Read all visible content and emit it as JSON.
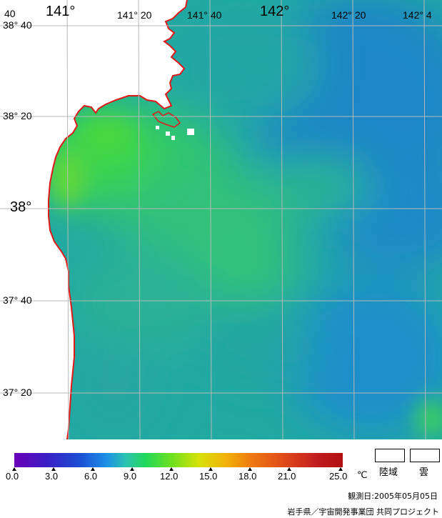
{
  "map": {
    "longitude_labels": [
      {
        "text": "40",
        "size": "small"
      },
      {
        "text": "141°",
        "size": "big"
      },
      {
        "text": "141° 20",
        "size": "small"
      },
      {
        "text": "141° 40",
        "size": "small"
      },
      {
        "text": "142°",
        "size": "big"
      },
      {
        "text": "142° 20",
        "size": "small"
      },
      {
        "text": "142° 4",
        "size": "small"
      }
    ],
    "latitude_labels": [
      {
        "text": "38° 40",
        "size": "small"
      },
      {
        "text": "38° 20",
        "size": "small"
      },
      {
        "text": "38°",
        "size": "big"
      },
      {
        "text": "37° 40",
        "size": "small"
      },
      {
        "text": "37° 20",
        "size": "small"
      }
    ],
    "colors": {
      "coastline": "#e01818",
      "grid": "#b8b8b8",
      "land": "#ffffff"
    }
  },
  "legend": {
    "ticks": [
      "0.0",
      "3.0",
      "6.0",
      "9.0",
      "12.0",
      "15.0",
      "18.0",
      "21.0",
      "25.0"
    ],
    "unit": "℃",
    "land_label": "陸域",
    "cloud_label": "雲"
  },
  "footer": {
    "observation_date": "観測日:2005年05月05日",
    "credit": "岩手県／宇宙開発事業団 共同プロジェクト"
  }
}
